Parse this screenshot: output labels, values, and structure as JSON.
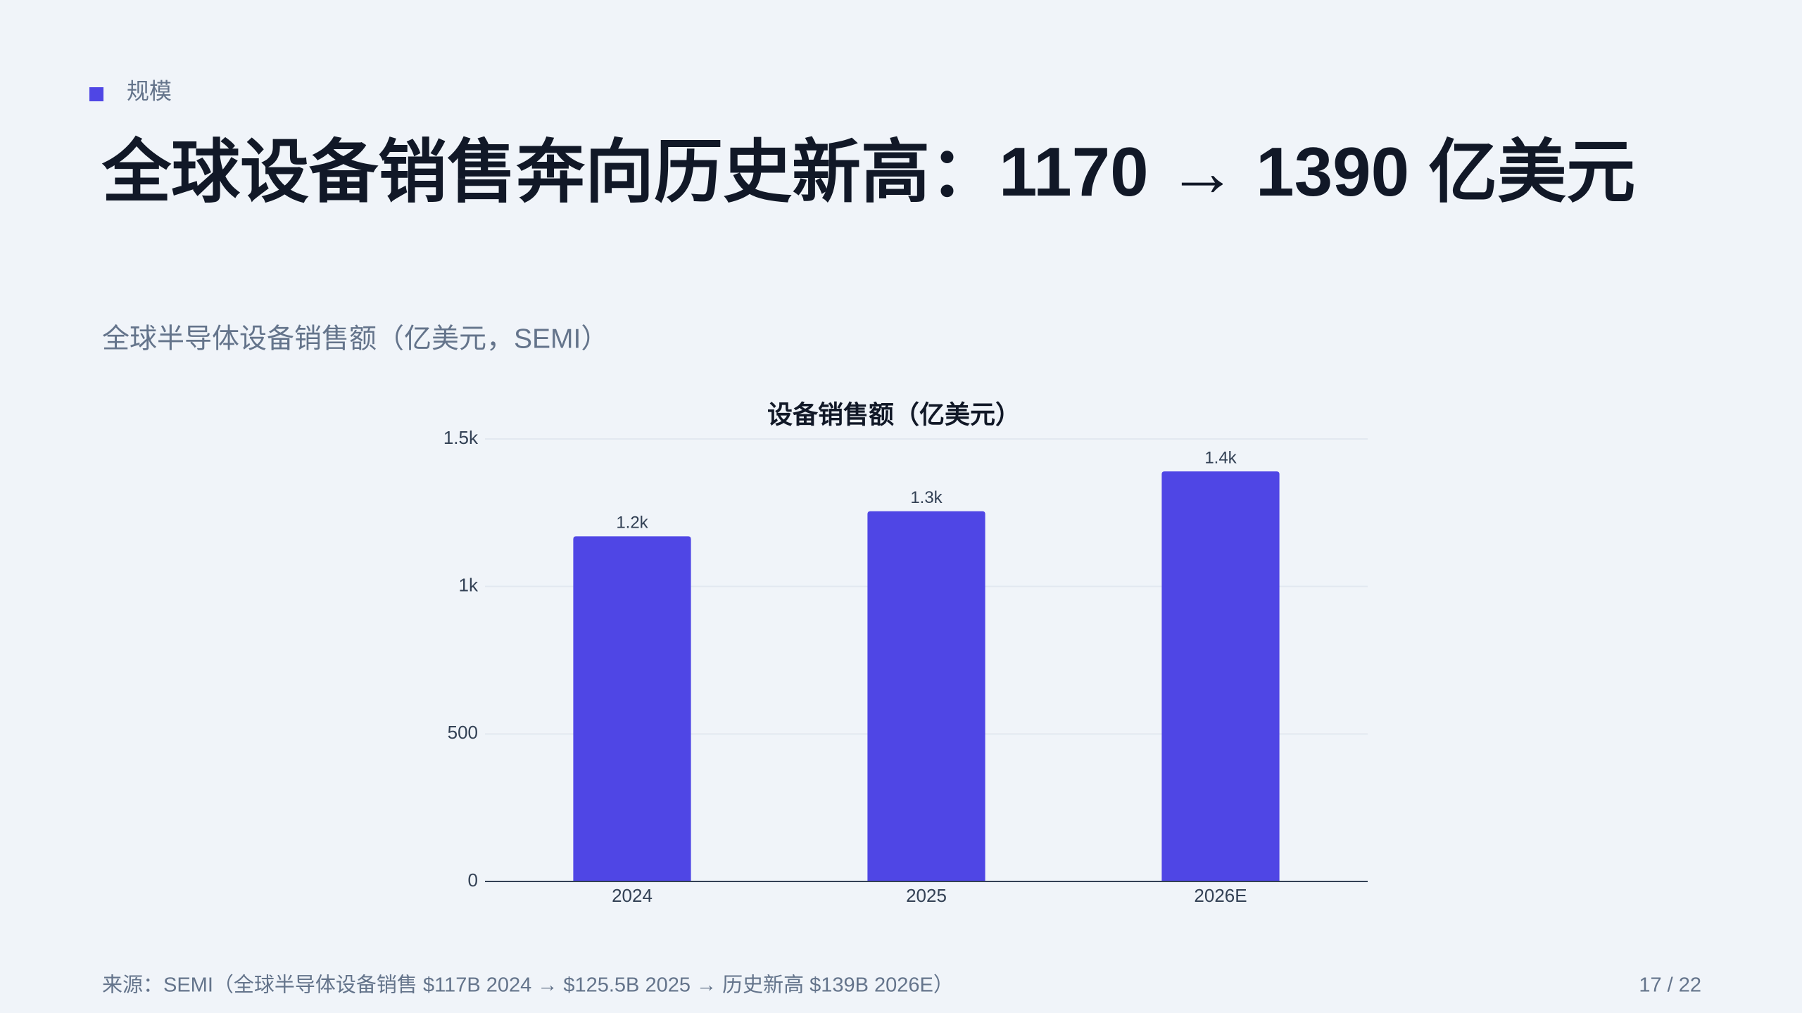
{
  "header": {
    "tag": "规模",
    "title": "全球设备销售奔向历史新高：1170 → 1390 亿美元",
    "subtitle": "全球半导体设备销售额（亿美元，SEMI）"
  },
  "chart_data": {
    "type": "bar",
    "title": "设备销售额（亿美元）",
    "categories": [
      "2024",
      "2025",
      "2026E"
    ],
    "values": [
      1170,
      1255,
      1390
    ],
    "value_labels": [
      "1.2k",
      "1.3k",
      "1.4k"
    ],
    "color": "#4f46e5",
    "ylim": [
      0,
      1500
    ],
    "yticks": [
      0,
      500,
      {
        "value": 1000,
        "label": "1k"
      },
      {
        "value": 1500,
        "label": "1.5k"
      }
    ],
    "grid": true
  },
  "footer": {
    "source": "来源：SEMI（全球半导体设备销售 $117B 2024 → $125.5B 2025 → 历史新高 $139B 2026E）",
    "page": "17 / 22"
  }
}
